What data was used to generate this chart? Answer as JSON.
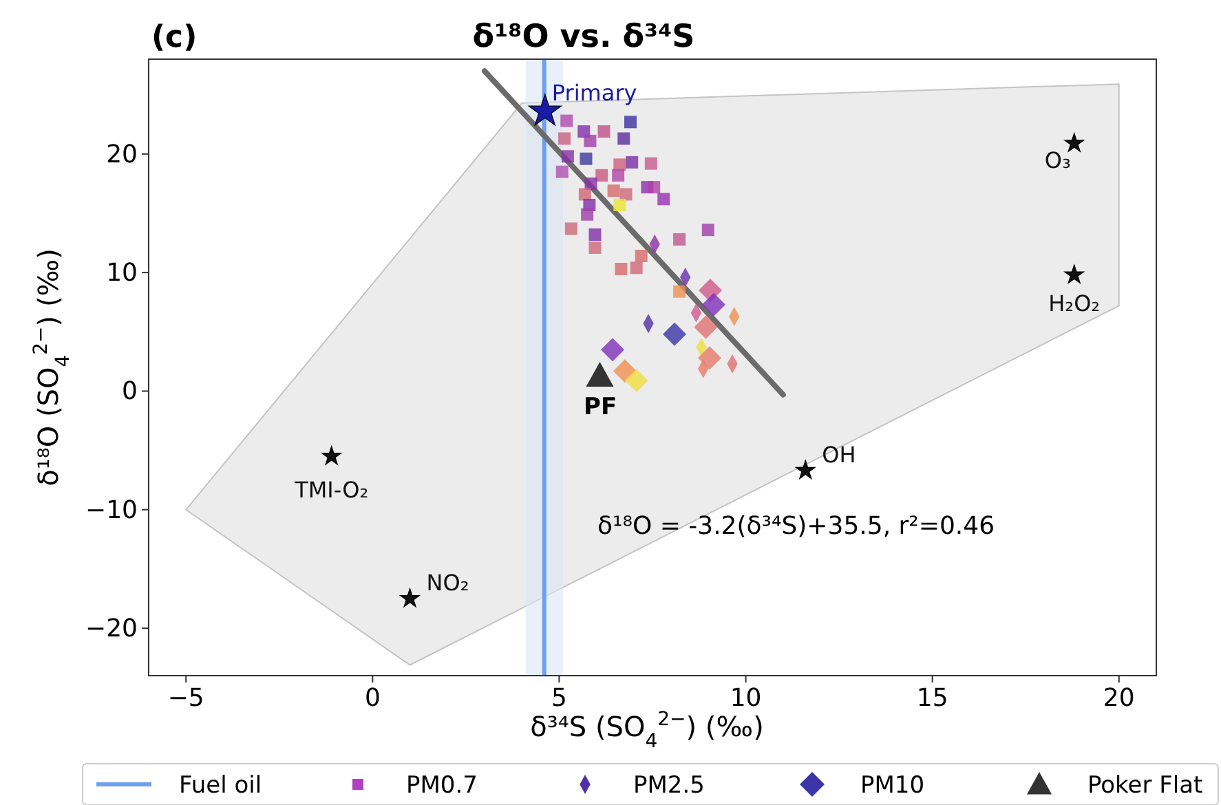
{
  "chart_data": {
    "type": "scatter",
    "title": "δ¹⁸O vs. δ³⁴S",
    "xlabel": "δ³⁴S (SO$_{4}$$^{2−}$) (‰)",
    "ylabel": "δ¹⁸O (SO$_{4}$$^{2−}$) (‰)",
    "annotations": [
      "(c)",
      "δ¹⁸O = -3.2(δ³⁴S)+35.5, r²=0.46",
      {
        "text": "PF",
        "x": 6.1,
        "y": 1.3
      }
    ],
    "xlim": [
      -6,
      21
    ],
    "ylim": [
      -24,
      28
    ],
    "xticks": [
      {
        "value": -5,
        "label": "−5"
      },
      0,
      5,
      10,
      15,
      20
    ],
    "yticks": [
      {
        "value": -20,
        "label": "−20"
      },
      {
        "value": -10,
        "label": "−10"
      },
      0,
      10,
      20
    ],
    "grid": false,
    "legend": "bottom",
    "ref_lines": [
      {
        "axis": "x",
        "value": 4.6,
        "label": "Fuel oil",
        "color": "#6e9ff0"
      }
    ],
    "bands": [
      {
        "axis": "x",
        "from": 4.1,
        "to": 5.1,
        "color": "#dce6f7"
      }
    ],
    "series": [
      {
        "type": "area",
        "color": "#e6e6e6",
        "x": [
          -5,
          1,
          20,
          20,
          4
        ],
        "values": [
          -10,
          -23.1,
          7.2,
          25.9,
          24.3
        ]
      },
      {
        "type": "line",
        "color": "#6b6b6b",
        "x": [
          3,
          11
        ],
        "values": [
          27,
          -0.3
        ]
      },
      {
        "name": "PM0.7",
        "marker": "square",
        "color": "#b040c0",
        "x": [
          5.2,
          5.66,
          6.2,
          6.91,
          5.14,
          5.83,
          6.73,
          5.23,
          5.72,
          5.08,
          6.62,
          6.95,
          7.46,
          6.14,
          6.58,
          5.85,
          6.46,
          6.79,
          5.69,
          7.36,
          7.54,
          7.8,
          6.62,
          5.81,
          5.75,
          5.32,
          5.96,
          8.99,
          8.22,
          5.96,
          7.2,
          6.66,
          7.07,
          8.22
        ],
        "values": [
          22.8,
          21.9,
          21.9,
          22.7,
          21.3,
          21.1,
          21.3,
          19.8,
          19.6,
          18.5,
          19.1,
          19.3,
          19.2,
          18.2,
          18.2,
          17.5,
          16.9,
          16.6,
          16.6,
          17.2,
          17.2,
          16.2,
          15.7,
          15.7,
          14.9,
          13.7,
          13.2,
          13.6,
          12.8,
          12.1,
          11.4,
          10.3,
          10.4,
          8.4
        ],
        "colors": [
          "#b04ab0",
          "#8030b0",
          "#c0508a",
          "#4030a0",
          "#c86080",
          "#a040a8",
          "#5a30a0",
          "#8830a8",
          "#4038a0",
          "#b050b0",
          "#d06080",
          "#7830a8",
          "#c85a90",
          "#c85a80",
          "#b048a8",
          "#8a30a8",
          "#d86a6a",
          "#d06878",
          "#d06878",
          "#9030b0",
          "#b040a8",
          "#9a30b0",
          "#e8e830",
          "#8030a8",
          "#a040a8",
          "#d06878",
          "#8030a8",
          "#a040a8",
          "#c05890",
          "#d06878",
          "#d86a6a",
          "#d86a6a",
          "#d06878",
          "#f09050"
        ]
      },
      {
        "name": "PM2.5",
        "marker": "diamond",
        "color": "#5030a8",
        "x": [
          7.56,
          8.38,
          7.39,
          8.81,
          9.69,
          9.64,
          8.67,
          8.86
        ],
        "values": [
          12.4,
          9.6,
          5.7,
          3.7,
          6.3,
          2.3,
          6.6,
          1.9
        ],
        "colors": [
          "#9030a8",
          "#6a30b0",
          "#5030a8",
          "#f0e040",
          "#f09050",
          "#e07070",
          "#d05a90",
          "#e87a6a"
        ]
      },
      {
        "name": "PM10",
        "marker": "diamond",
        "color": "#3b35a8",
        "x": [
          9.05,
          9.14,
          8.93,
          8.09,
          6.43,
          9.03,
          6.76,
          7.07
        ],
        "values": [
          8.5,
          7.3,
          5.4,
          4.8,
          3.5,
          2.8,
          1.7,
          0.9
        ],
        "colors": [
          "#d05a8a",
          "#8030b8",
          "#e07070",
          "#3b35a8",
          "#8030b8",
          "#e87a6a",
          "#f09050",
          "#f0e040"
        ]
      },
      {
        "name": "Poker Flat",
        "marker": "triangle",
        "color": "#333333",
        "x": [
          6.09
        ],
        "values": [
          1.3
        ]
      },
      {
        "name": "Primary",
        "marker": "star",
        "color": "#1a1aa8",
        "x": [
          4.62
        ],
        "values": [
          23.6
        ]
      },
      {
        "name": "O₃",
        "marker": "star",
        "color": "#111111",
        "x": [
          18.8
        ],
        "values": [
          20.9
        ]
      },
      {
        "name": "H₂O₂",
        "marker": "star",
        "color": "#111111",
        "x": [
          18.8
        ],
        "values": [
          9.8
        ]
      },
      {
        "name": "TMI-O₂",
        "marker": "star",
        "color": "#111111",
        "x": [
          -1.1
        ],
        "values": [
          -5.5
        ]
      },
      {
        "name": "NO₂",
        "marker": "star",
        "color": "#111111",
        "x": [
          1.0
        ],
        "values": [
          -17.5
        ]
      },
      {
        "name": "OH",
        "marker": "star",
        "color": "#111111",
        "x": [
          11.6
        ],
        "values": [
          -6.7
        ]
      }
    ]
  }
}
